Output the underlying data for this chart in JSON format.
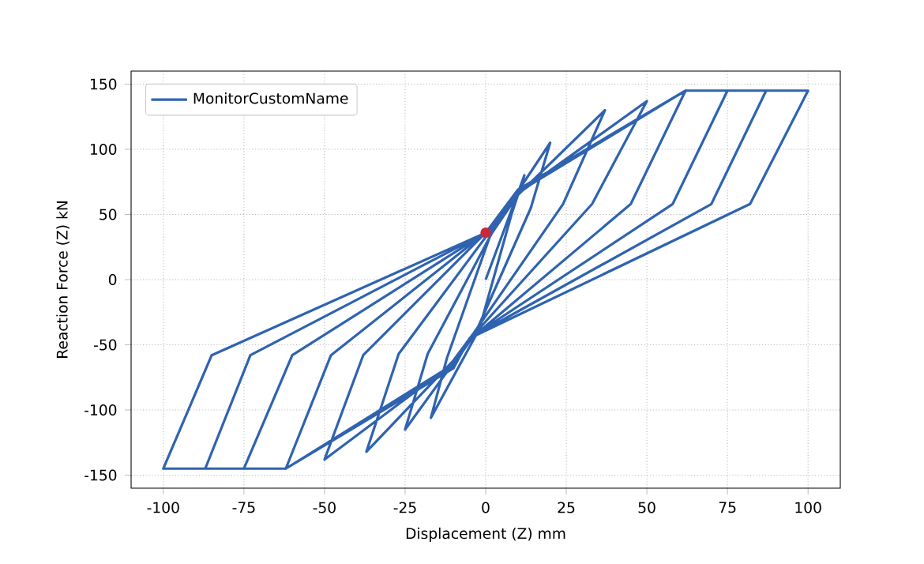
{
  "chart_data": {
    "type": "line",
    "xlabel": "Displacement (Z) mm",
    "ylabel": "Reaction Force (Z) kN",
    "xlim": [
      -110,
      110
    ],
    "ylim": [
      -160,
      160
    ],
    "xticks": [
      -100,
      -75,
      -50,
      -25,
      0,
      25,
      50,
      75,
      100
    ],
    "yticks": [
      -150,
      -100,
      -50,
      0,
      50,
      100,
      150
    ],
    "grid": true,
    "legend": "top left",
    "series": [
      {
        "name": "MonitorCustomName",
        "color": "#2f63b0",
        "marker": "none",
        "line_style": "solid",
        "x": [
          0,
          12,
          8,
          -2,
          -17,
          -12,
          2,
          20,
          14,
          -3,
          -25,
          -18,
          2,
          10,
          37,
          24,
          -4,
          -10,
          -37,
          -27,
          1,
          10,
          50,
          33,
          -4,
          -10,
          -50,
          -38,
          0,
          10,
          62,
          45,
          -4,
          -10,
          -62,
          -48,
          0,
          10,
          62,
          75,
          58,
          -5,
          -10,
          -62,
          -75,
          -60,
          0,
          10,
          62,
          87,
          70,
          -5,
          -10,
          -62,
          -87,
          -73,
          0,
          10,
          62,
          100,
          82,
          -5,
          -10,
          -62,
          -100,
          -85,
          0
        ],
        "values": [
          0,
          80,
          50,
          -38,
          -106,
          -60,
          38,
          105,
          55,
          -40,
          -115,
          -57,
          36,
          65,
          130,
          58,
          -42,
          -62,
          -132,
          -57,
          36,
          66,
          137,
          58,
          -43,
          -64,
          -138,
          -58,
          36,
          67,
          145,
          58,
          -44,
          -65,
          -145,
          -58,
          36,
          68,
          145,
          145,
          58,
          -45,
          -66,
          -145,
          -145,
          -58,
          36,
          68,
          145,
          145,
          58,
          -45,
          -67,
          -145,
          -145,
          -58,
          36,
          69,
          145,
          145,
          58,
          -45,
          -68,
          -145,
          -145,
          -58,
          36
        ]
      },
      {
        "type": "scatter",
        "color": "#c8283a",
        "marker": "circle",
        "x": [
          0
        ],
        "values": [
          36
        ]
      }
    ]
  }
}
